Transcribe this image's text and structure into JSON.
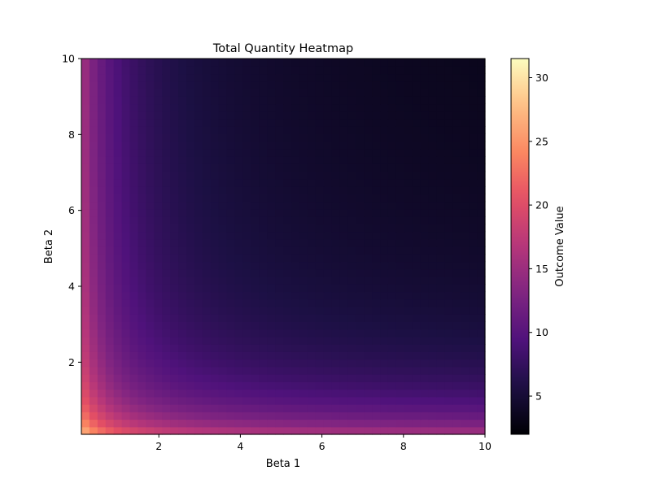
{
  "chart_data": {
    "type": "heatmap",
    "title": "Total Quantity Heatmap",
    "xlabel": "Beta 1",
    "ylabel": "Beta 2",
    "colorbar_label": "Outcome Value",
    "colormap": "magma",
    "xlim": [
      0.1,
      10
    ],
    "ylim": [
      0.1,
      10
    ],
    "grid_size": [
      50,
      50
    ],
    "value_range": [
      2,
      31.5
    ],
    "x_ticks": [
      2,
      4,
      6,
      8,
      10
    ],
    "y_ticks": [
      2,
      4,
      6,
      8,
      10
    ],
    "colorbar_ticks": [
      5,
      10,
      15,
      20,
      25,
      30
    ],
    "surface": {
      "formula": "z = 2 + 29.5 * (0.5 / (1 + 0.9*b1)^1.3 + 0.5 / (1 + 0.9*b2)^1.3)",
      "description": "Outcome highest near the origin (~31.5), falls off with increasing Beta 1 and Beta 2, minimum ~2 near (10,10)."
    }
  }
}
